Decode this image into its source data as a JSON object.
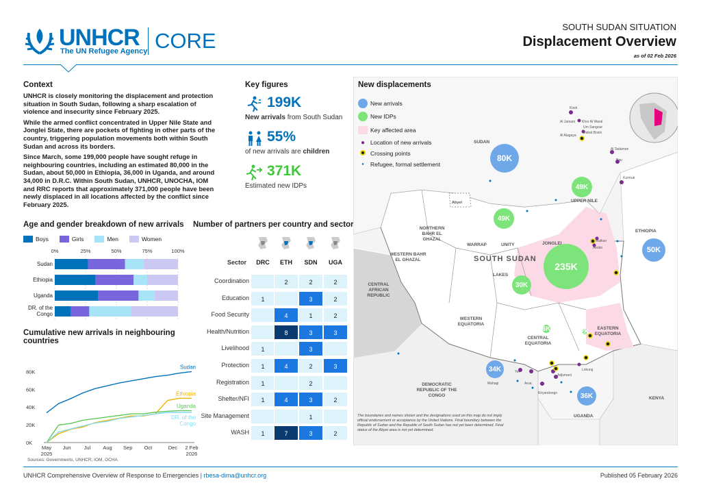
{
  "header": {
    "logo_text": "UNHCR",
    "logo_sub": "The UN Refugee Agency",
    "product": "CORE",
    "situation": "SOUTH SUDAN SITUATION",
    "title": "Displacement Overview",
    "date": "as of 02 Feb 2026"
  },
  "context": {
    "title": "Context",
    "p1": "UNHCR is closely monitoring the displacement and protection situation in South Sudan, following a sharp escalation of violence and insecurity since February 2025.",
    "p2": "While the armed conflict concentrated in Upper Nile State and Jonglei State, there are pockets of fighting in other parts of the country, triggering population movements both within South Sudan and across its borders.",
    "p3": "Since March, some 199,000 people have sought refuge in neighbouring countries, including an estimated 80,000 in the Sudan, about 50,000 in Ethiopia, 36,000 in Uganda, and around 34,000 in D.R.C. Within South Sudan, UNHCR, UNOCHA, IOM and RRC reports that approximately 371,000 people have been newly displaced in all locations affected by the conflict since February 2025."
  },
  "key_figures": {
    "title": "Key figures",
    "items": [
      {
        "value": "199K",
        "label_a": "New arrivals",
        "label_b": " from South Sudan"
      },
      {
        "value": "55%",
        "label_a": "of new arrivals are ",
        "label_b": "children"
      },
      {
        "value": "371K",
        "label_a": "Estimated new IDPs",
        "label_b": ""
      }
    ]
  },
  "age_gender": {
    "title": "Age and gender breakdown of new arrivals",
    "legend": [
      {
        "name": "Boys",
        "color": "#0072bc"
      },
      {
        "name": "Girls",
        "color": "#7766dd"
      },
      {
        "name": "Men",
        "color": "#a8e4f8"
      },
      {
        "name": "Women",
        "color": "#ccc8f4"
      }
    ],
    "ticks": [
      "0%",
      "25%",
      "50%",
      "75%",
      "100%"
    ],
    "rows": [
      {
        "label": "Sudan",
        "values": [
          27,
          30,
          15,
          28
        ]
      },
      {
        "label": "Ethiopia",
        "values": [
          33,
          31,
          11,
          25
        ]
      },
      {
        "label": "Uganda",
        "values": [
          35,
          33,
          13,
          19
        ]
      },
      {
        "label": "DR. of the Congo",
        "values": [
          13,
          15,
          34,
          38
        ]
      }
    ]
  },
  "cumulative": {
    "title": "Cumulative new arrivals in neighbouring countries",
    "yticks": [
      "80K",
      "60K",
      "40K",
      "20K",
      "0K"
    ],
    "xticks": [
      "May\n2025",
      "Jun",
      "Jul",
      "Aug",
      "Sep",
      "Oct",
      "Dec",
      "2 Feb\n2026"
    ],
    "source": "Sources: Governments, UNHCR, IOM, OCHA",
    "series": [
      {
        "name": "Sudan",
        "color": "#0072bc",
        "end": 80000
      },
      {
        "name": "Ethiopia",
        "color": "#f0b400",
        "end": 50000
      },
      {
        "name": "Uganda",
        "color": "#5ec85a",
        "end": 36000
      },
      {
        "name": "DR. of the Congo",
        "color": "#80dcf4",
        "end": 34000
      }
    ]
  },
  "partners": {
    "title": "Number of partners per country and sector",
    "sector_hdr": "Sector",
    "countries": [
      "DRC",
      "ETH",
      "SDN",
      "UGA"
    ],
    "rows": [
      {
        "sector": "Coordination",
        "v": [
          "",
          "2",
          "2",
          "2"
        ]
      },
      {
        "sector": "Education",
        "v": [
          "1",
          "",
          "3",
          "2"
        ]
      },
      {
        "sector": "Food Security",
        "v": [
          "",
          "4",
          "1",
          "2"
        ]
      },
      {
        "sector": "Health/Nutrition",
        "v": [
          "",
          "8",
          "3",
          "3"
        ]
      },
      {
        "sector": "Livelihood",
        "v": [
          "1",
          "",
          "3",
          ""
        ]
      },
      {
        "sector": "Protection",
        "v": [
          "1",
          "4",
          "2",
          "3"
        ]
      },
      {
        "sector": "Registration",
        "v": [
          "1",
          "",
          "2",
          ""
        ]
      },
      {
        "sector": "Shelter/NFI",
        "v": [
          "1",
          "4",
          "3",
          "2"
        ]
      },
      {
        "sector": "Site Management",
        "v": [
          "",
          "",
          "1",
          ""
        ]
      },
      {
        "sector": "WASH",
        "v": [
          "1",
          "7",
          "3",
          "2"
        ]
      }
    ]
  },
  "map": {
    "title": "New displacements",
    "legend": [
      "New arrivals",
      "New IDPs",
      "Key affected area",
      "Location of new arrivals",
      "Crossing points",
      "Refugee, formal settlement"
    ],
    "country_labels": {
      "sudan": "SUDAN",
      "ssudan": "SOUTH SUDAN",
      "car": "CENTRAL AFRICAN REPUBLIC",
      "drc": "DEMOCRATIC REPUBLIC OF THE CONGO",
      "ethiopia": "ETHIOPIA",
      "uganda": "UGANDA",
      "kenya": "KENYA"
    },
    "state_labels": {
      "nbg": "NORTHERN BAHR EL GHAZAL",
      "wbg": "WESTERN BAHR EL GHAZAL",
      "warrap": "WARRAP",
      "unity": "UNITY",
      "upper_nile": "UPPER NILE",
      "jonglei": "JONGLEI",
      "lakes": "LAKES",
      "weq": "WESTERN EQUATORIA",
      "ceq": "CENTRAL EQUATORIA",
      "eeq": "EASTERN EQUATORIA",
      "abyei": "Abyei"
    },
    "arrivals": [
      {
        "label": "80K"
      },
      {
        "label": "50K"
      },
      {
        "label": "34K"
      },
      {
        "label": "36K"
      }
    ],
    "idps": [
      {
        "label": "49K"
      },
      {
        "label": "49K"
      },
      {
        "label": "235K"
      },
      {
        "label": "30K"
      },
      {
        "label": "6K"
      },
      {
        "label": "2K"
      }
    ],
    "places": [
      "Kosti",
      "Al Jamam",
      "Khor Al Waral",
      "Um Sangour",
      "Dabat Bosin",
      "Al Alagaya",
      "Al Tadamon",
      "Bau",
      "Kurmuk",
      "Malkan",
      "Akobo",
      "Yei",
      "Arua",
      "Adjumani",
      "Kiryandongo",
      "Lokung",
      "Mahagi"
    ],
    "disclaimer": "The boundaries and names shown and the designations used on this map do not imply official endorsement or acceptance by the United Nations. Final boundary between the Republic of Sudan and the Republic of South Sudan has not yet been determined. Final status of the Abyei area is not yet determined."
  },
  "footer": {
    "left": "UNHCR Comprehensive Overview of Response to Emergencies",
    "email": "rbesa-dima@unhcr.org",
    "right": "Published 05 February 2026"
  },
  "colors": {
    "brand": "#0072bc",
    "green": "#3dc83a"
  }
}
